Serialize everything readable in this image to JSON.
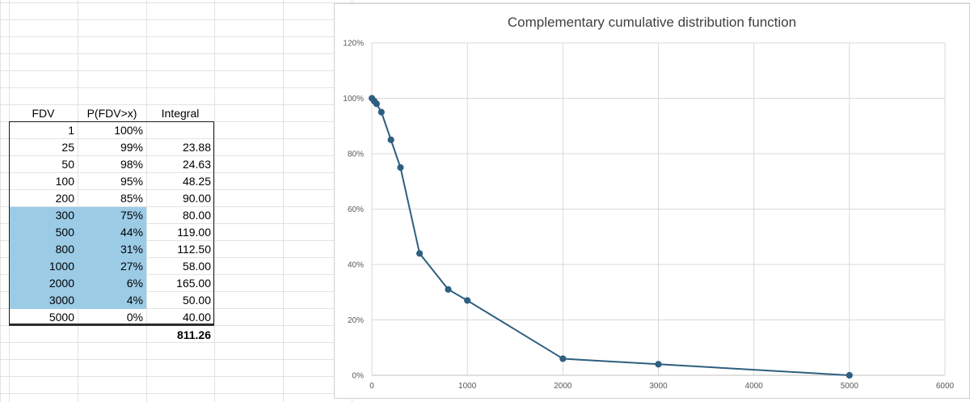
{
  "table": {
    "headers": [
      "FDV",
      "P(FDV>x)",
      "Integral"
    ],
    "rows": [
      {
        "fdv": "1",
        "p": "100%",
        "integral": ""
      },
      {
        "fdv": "25",
        "p": "99%",
        "integral": "23.88"
      },
      {
        "fdv": "50",
        "p": "98%",
        "integral": "24.63"
      },
      {
        "fdv": "100",
        "p": "95%",
        "integral": "48.25"
      },
      {
        "fdv": "200",
        "p": "85%",
        "integral": "90.00"
      },
      {
        "fdv": "300",
        "p": "75%",
        "integral": "80.00"
      },
      {
        "fdv": "500",
        "p": "44%",
        "integral": "119.00"
      },
      {
        "fdv": "800",
        "p": "31%",
        "integral": "112.50"
      },
      {
        "fdv": "1000",
        "p": "27%",
        "integral": "58.00"
      },
      {
        "fdv": "2000",
        "p": "6%",
        "integral": "165.00"
      },
      {
        "fdv": "3000",
        "p": "4%",
        "integral": "50.00"
      },
      {
        "fdv": "5000",
        "p": "0%",
        "integral": "40.00"
      }
    ],
    "total": "811.26"
  },
  "colors": {
    "highlight": "#9ccbe6",
    "series": "#2e5f80",
    "gridline": "#d9d9d9"
  },
  "chart_data": {
    "type": "scatter",
    "title": "Complementary cumulative distribution function",
    "xlabel": "",
    "ylabel": "",
    "xlim": [
      0,
      6000
    ],
    "ylim": [
      0,
      1.2
    ],
    "x_ticks": [
      "0",
      "1000",
      "2000",
      "3000",
      "4000",
      "5000",
      "6000"
    ],
    "y_ticks": [
      "0%",
      "20%",
      "40%",
      "60%",
      "80%",
      "100%",
      "120%"
    ],
    "grid": true,
    "series": [
      {
        "name": "P(FDV>x)",
        "x": [
          1,
          25,
          50,
          100,
          200,
          300,
          500,
          800,
          1000,
          2000,
          3000,
          5000
        ],
        "y": [
          1.0,
          0.99,
          0.98,
          0.95,
          0.85,
          0.75,
          0.44,
          0.31,
          0.27,
          0.06,
          0.04,
          0.0
        ]
      }
    ]
  }
}
